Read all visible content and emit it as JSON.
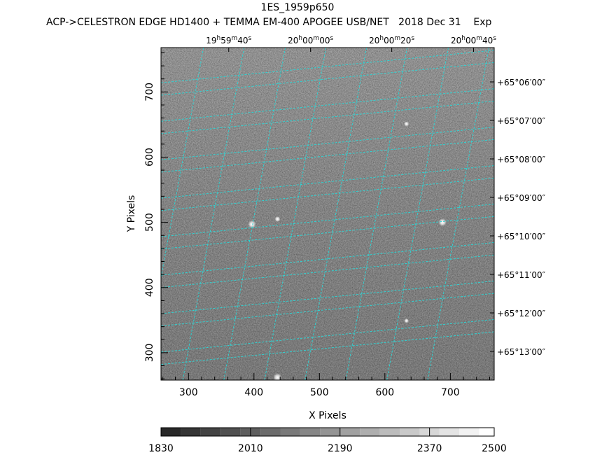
{
  "chart_data": {
    "type": "heatmap",
    "title": "1ES_1959p650",
    "subtitle": "ACP->CELESTRON EDGE HD1400 + TEMMA EM-400 APOGEE USB/NET   2018 Dec 31    Exp",
    "xlabel": "X Pixels",
    "ylabel": "Y Pixels",
    "xlim": [
      258,
      767
    ],
    "ylim": [
      258,
      768
    ],
    "x_ticks": [
      300,
      400,
      500,
      600,
      700
    ],
    "y_ticks": [
      300,
      400,
      500,
      600,
      700
    ],
    "ra_ticks": [
      {
        "h": "19",
        "m": "59",
        "s": "40",
        "x": 385
      },
      {
        "h": "20",
        "m": "00",
        "s": "00",
        "x": 510
      },
      {
        "h": "20",
        "m": "00",
        "s": "20",
        "x": 634
      },
      {
        "h": "20",
        "m": "00",
        "s": "40",
        "x": 759
      }
    ],
    "dec_ticks": [
      {
        "label": "+65°06′00″",
        "y": 735
      },
      {
        "label": "+65°07′00″",
        "y": 676
      },
      {
        "label": "+65°08′00″",
        "y": 617
      },
      {
        "label": "+65°09′00″",
        "y": 558
      },
      {
        "label": "+65°10′00″",
        "y": 499
      },
      {
        "label": "+65°11′00″",
        "y": 440
      },
      {
        "label": "+65°12′00″",
        "y": 381
      },
      {
        "label": "+65°13′00″",
        "y": 322
      }
    ],
    "stars": [
      {
        "x": 397,
        "y": 497,
        "flux": 0.9
      },
      {
        "x": 688,
        "y": 500,
        "flux": 0.9
      },
      {
        "x": 436,
        "y": 262,
        "flux": 1.0
      },
      {
        "x": 436,
        "y": 505,
        "flux": 0.5
      },
      {
        "x": 633,
        "y": 651,
        "flux": 0.4
      },
      {
        "x": 633,
        "y": 349,
        "flux": 0.35
      }
    ],
    "colorbar": {
      "min": 1830,
      "max": 2500,
      "ticks": [
        1830,
        2010,
        2190,
        2370,
        2500
      ],
      "steps": [
        1830,
        1870,
        1910,
        1950,
        1990,
        2030,
        2070,
        2110,
        2150,
        2190,
        2230,
        2270,
        2310,
        2350,
        2390,
        2430,
        2470
      ]
    },
    "colors": {
      "grid": "#2fd3d3",
      "background": "#ffffff",
      "frame": "#000000"
    },
    "grid": true
  }
}
